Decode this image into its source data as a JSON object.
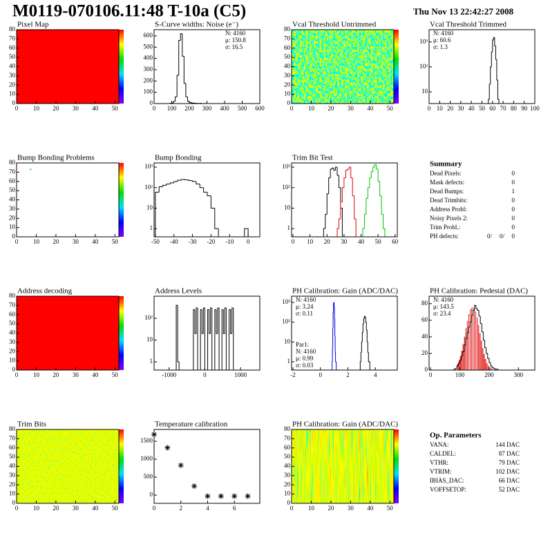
{
  "header": {
    "title": "M0119-070106.11:48 T-10a (C5)",
    "date": "Thu Nov 13 22:42:27 2008"
  },
  "chart_data": [
    {
      "type": "heatmap",
      "title": "Pixel Map",
      "fill": "#ff0000",
      "xlim": [
        0,
        52
      ],
      "xticks": [
        0,
        10,
        20,
        30,
        40,
        50
      ],
      "ylim": [
        0,
        80
      ],
      "yticks": [
        0,
        10,
        20,
        30,
        40,
        50,
        60,
        70,
        80
      ]
    },
    {
      "type": "histogram",
      "title": "S-Curve widths: Noise (e⁻)",
      "xlim": [
        0,
        600
      ],
      "xticks": [
        0,
        100,
        200,
        300,
        400,
        500,
        600
      ],
      "ylim": [
        0,
        655
      ],
      "yticks": [
        0,
        100,
        200,
        300,
        400,
        500,
        600
      ],
      "series": [
        {
          "color": "#000000",
          "bins": [
            80,
            90,
            100,
            110,
            120,
            130,
            140,
            150,
            160,
            170,
            180,
            190,
            200,
            210,
            220,
            230,
            240,
            250,
            260,
            270,
            280,
            290,
            300
          ],
          "counts": [
            0,
            2,
            5,
            20,
            60,
            250,
            560,
            620,
            420,
            180,
            60,
            20,
            10,
            6,
            4,
            3,
            2,
            1,
            2,
            0,
            1,
            0
          ]
        }
      ],
      "stats_corner": "top-right",
      "stats": [
        {
          "text": "N: 4160",
          "color": "#000000"
        },
        {
          "text": "μ: 150.8",
          "color": "#000000"
        },
        {
          "text": "σ: 16.5",
          "color": "#000000"
        }
      ]
    },
    {
      "type": "heatmap",
      "title": "Vcal Threshold Untrimmed",
      "xlim": [
        0,
        52
      ],
      "xticks": [
        0,
        10,
        20,
        30,
        40,
        50
      ],
      "ylim": [
        0,
        80
      ],
      "yticks": [
        0,
        10,
        20,
        30,
        40,
        50,
        60,
        70,
        80
      ]
    },
    {
      "type": "histogram",
      "title": "Vcal Threshold Trimmed",
      "log_y": true,
      "xlim": [
        0,
        100
      ],
      "xticks": [
        0,
        10,
        20,
        30,
        40,
        50,
        60,
        70,
        80,
        90,
        100
      ],
      "ylim": [
        3.4,
        3100
      ],
      "yticks": [
        10,
        {
          "value": 100,
          "label": "10²"
        },
        {
          "value": 1000,
          "label": "10³"
        }
      ],
      "series": [
        {
          "color": "#000000",
          "bins": [
            56,
            57,
            58,
            59,
            60,
            61,
            62,
            63,
            64,
            65,
            66
          ],
          "counts": [
            5,
            20,
            100,
            400,
            1200,
            1500,
            700,
            200,
            30,
            5
          ]
        }
      ],
      "stats_corner": "top-left",
      "stats": [
        {
          "text": "N: 4160",
          "color": "#000000"
        },
        {
          "text": "μ: 60.6",
          "color": "#000000"
        },
        {
          "text": "σ:  1.3",
          "color": "#000000"
        }
      ]
    },
    {
      "type": "heatmap",
      "title": "Bump Bonding Problems",
      "xlim": [
        0,
        52
      ],
      "xticks": [
        0,
        10,
        20,
        30,
        40,
        50
      ],
      "ylim": [
        0,
        80
      ],
      "yticks": [
        0,
        10,
        20,
        30,
        40,
        50,
        60,
        70,
        80
      ],
      "points_color": "#30d8c0",
      "points": [
        {
          "x": 7,
          "y": 73
        }
      ]
    },
    {
      "type": "histogram",
      "title": "Bump Bonding",
      "log_y": true,
      "xlim": [
        -50.7,
        6.3
      ],
      "xticks": [
        -50,
        -40,
        -30,
        -20,
        -10,
        0
      ],
      "ylim": [
        0.4,
        1600
      ],
      "yticks": [
        1,
        10,
        {
          "value": 100,
          "label": "10²"
        },
        {
          "value": 1000,
          "label": "10³"
        }
      ],
      "series": [
        {
          "color": "#000000",
          "bins": [
            -50,
            -48,
            -46,
            -44,
            -42,
            -40,
            -38,
            -36,
            -34,
            -32,
            -30,
            -28,
            -26,
            -24,
            -22,
            -20,
            -18,
            -16,
            -14,
            -12,
            -10,
            -8,
            -6,
            -4,
            -2,
            0
          ],
          "counts": [
            60,
            110,
            130,
            150,
            170,
            200,
            230,
            250,
            240,
            220,
            200,
            150,
            100,
            60,
            40,
            10,
            1,
            0,
            0,
            0,
            0,
            0,
            0,
            0,
            1
          ]
        }
      ]
    },
    {
      "type": "histogram",
      "title": "Trim Bit Test",
      "log_y": true,
      "xlim": [
        -0.8,
        61.3
      ],
      "xticks": [
        0,
        10,
        20,
        30,
        40,
        50,
        60
      ],
      "ylim": [
        0.4,
        1600
      ],
      "yticks": [
        1,
        10,
        {
          "value": 100,
          "label": "10²"
        },
        {
          "value": 1000,
          "label": "10³"
        }
      ],
      "series": [
        {
          "color": "#000000",
          "bins": [
            18,
            19,
            20,
            21,
            22,
            23,
            24,
            25,
            26,
            27,
            28,
            29
          ],
          "counts": [
            1,
            5,
            50,
            300,
            800,
            900,
            700,
            1000,
            400,
            100,
            10
          ]
        },
        {
          "color": "#e00000",
          "bins": [
            26,
            27,
            28,
            29,
            30,
            31,
            32,
            33,
            34,
            35,
            36,
            37
          ],
          "counts": [
            1,
            3,
            20,
            100,
            300,
            700,
            800,
            1000,
            300,
            40,
            3
          ]
        },
        {
          "color": "#00c000",
          "bins": [
            41,
            42,
            43,
            44,
            45,
            46,
            47,
            48,
            49,
            50,
            51,
            52,
            53,
            54
          ],
          "counts": [
            1,
            5,
            30,
            100,
            300,
            600,
            1000,
            1300,
            800,
            200,
            40,
            5,
            1
          ]
        }
      ]
    },
    {
      "type": "heatmap",
      "title": "Address decoding",
      "fill": "#ff0000",
      "xlim": [
        0,
        52
      ],
      "xticks": [
        0,
        10,
        20,
        30,
        40,
        50
      ],
      "ylim": [
        0,
        80
      ],
      "yticks": [
        0,
        10,
        20,
        30,
        40,
        50,
        60,
        70,
        80
      ]
    },
    {
      "type": "histogram",
      "title": "Address Levels",
      "log_y": true,
      "xlim": [
        -1420,
        1540
      ],
      "xticks": [
        -1000,
        0,
        1000
      ],
      "ylim": [
        0.42,
        1040
      ],
      "yticks": [
        1,
        10,
        {
          "value": 100,
          "label": "10²"
        }
      ],
      "series": [
        {
          "color": "#000000",
          "bins": [
            -800,
            -760,
            -720,
            -680,
            -640,
            -600,
            -560,
            -520,
            -480,
            -440,
            -400,
            -360,
            -320,
            -280,
            -240,
            -200,
            -160,
            -120,
            -80,
            -40,
            0,
            40,
            80,
            120,
            160,
            200,
            240,
            280,
            320,
            360,
            400,
            440,
            480,
            520,
            560,
            600,
            640,
            680,
            720,
            760,
            800,
            840
          ],
          "counts": [
            400,
            1,
            0,
            0,
            0,
            0,
            0,
            0,
            0,
            0,
            0,
            0,
            250,
            20,
            300,
            0,
            0,
            250,
            20,
            300,
            0,
            0,
            250,
            20,
            300,
            0,
            0,
            250,
            20,
            300,
            0,
            0,
            250,
            20,
            300,
            0,
            0,
            250,
            20,
            300,
            0
          ]
        }
      ]
    },
    {
      "type": "histogram",
      "title": "PH Calibration: Gain (ADC/DAC)",
      "log_y": true,
      "xlim": [
        -2.1,
        5.6
      ],
      "xticks": [
        -2,
        0,
        2,
        4
      ],
      "ylim": [
        0.38,
        2060
      ],
      "yticks": [
        1,
        10,
        {
          "value": 100,
          "label": "10²"
        },
        {
          "value": 1000,
          "label": "10³"
        }
      ],
      "series": [
        {
          "color": "#000000",
          "bins": [
            2.9,
            2.95,
            3,
            3.05,
            3.1,
            3.15,
            3.2,
            3.25,
            3.3,
            3.35,
            3.4,
            3.45,
            3.5,
            3.55,
            3.6
          ],
          "counts": [
            1,
            3,
            10,
            30,
            80,
            150,
            200,
            180,
            100,
            40,
            10,
            3,
            1,
            1
          ]
        },
        {
          "color": "#0000e0",
          "bins": [
            0.85,
            0.875,
            0.9,
            0.925,
            0.95,
            0.975,
            1,
            1.025,
            1.05,
            1.075,
            1.1,
            1.125,
            1.15
          ],
          "counts": [
            1,
            5,
            50,
            300,
            900,
            1000,
            600,
            150,
            20,
            3,
            1,
            1
          ]
        }
      ],
      "stats_corner": "top-left",
      "stats": [
        {
          "text": "N: 4160",
          "color": "#000000"
        },
        {
          "text": "μ: 3.24",
          "color": "#000000"
        },
        {
          "text": "σ: 0.11",
          "color": "#000000"
        }
      ],
      "fit_stats_corner": "bottom-left",
      "fit_stats": [
        {
          "text": "Par1:",
          "color": "#0000e0"
        },
        {
          "text": "N: 4160",
          "color": "#0000e0"
        },
        {
          "text": "μ: 0.99",
          "color": "#0000e0"
        },
        {
          "text": "σ: 0.03",
          "color": "#0000e0"
        }
      ]
    },
    {
      "type": "histogram",
      "title": "PH Calibration: Pedestal (DAC)",
      "xlim": [
        -5,
        356
      ],
      "xticks": [
        0,
        100,
        200,
        300
      ],
      "ylim": [
        0,
        89
      ],
      "yticks": [
        0,
        20,
        40,
        60,
        80
      ],
      "series": [
        {
          "color": "#e00000",
          "style": "hatched",
          "bins": [
            90,
            95,
            100,
            105,
            110,
            115,
            120,
            125,
            130,
            135,
            140,
            145,
            150,
            155,
            160,
            165,
            170,
            175,
            180,
            185,
            190,
            195,
            200,
            205,
            210
          ],
          "counts": [
            7,
            11,
            16,
            23,
            31,
            40,
            50,
            59,
            67,
            73,
            75,
            74,
            70,
            63,
            54,
            44,
            35,
            26,
            19,
            13,
            8,
            5,
            3,
            2
          ]
        },
        {
          "color": "#000000",
          "bins": [
            80,
            85,
            90,
            95,
            100,
            105,
            110,
            115,
            120,
            125,
            130,
            135,
            140,
            145,
            150,
            155,
            160,
            165,
            170,
            175,
            180,
            185,
            190,
            195,
            200,
            205,
            210,
            215,
            220,
            225,
            230
          ],
          "counts": [
            1,
            2,
            5,
            8,
            12,
            17,
            22,
            30,
            38,
            45,
            52,
            58,
            66,
            72,
            78,
            74,
            72,
            65,
            56,
            46,
            36,
            27,
            20,
            14,
            9,
            5,
            3,
            2,
            1,
            1
          ]
        }
      ],
      "stats_corner": "top-left",
      "stats": [
        {
          "text": "N: 4160",
          "color": "#000000"
        },
        {
          "text": "μ: 143.5",
          "color": "#e00000"
        },
        {
          "text": "σ: 23.4",
          "color": "#e00000"
        }
      ]
    },
    {
      "type": "heatmap",
      "title": "Trim Bits",
      "xlim": [
        0,
        52
      ],
      "xticks": [
        0,
        10,
        20,
        30,
        40,
        50
      ],
      "ylim": [
        0,
        80
      ],
      "yticks": [
        0,
        10,
        20,
        30,
        40,
        50,
        60,
        70,
        80
      ]
    },
    {
      "type": "scatter",
      "title": "Temperature calibration",
      "xlim": [
        0,
        7.9
      ],
      "xticks": [
        0,
        2,
        4,
        6
      ],
      "ylim": [
        -230,
        1830
      ],
      "yticks": [
        0,
        500,
        1000,
        1500
      ],
      "x": [
        0,
        1,
        2,
        3,
        4,
        5,
        6,
        7
      ],
      "values": [
        1690,
        1320,
        830,
        250,
        -30,
        -30,
        -30,
        -30
      ],
      "color": "#000000"
    },
    {
      "type": "heatmap",
      "title": "PH Calibration: Gain (ADC/DAC)",
      "xlim": [
        0,
        52
      ],
      "xticks": [
        0,
        10,
        20,
        30,
        40,
        50
      ],
      "ylim": [
        0,
        80
      ],
      "yticks": [
        0,
        10,
        20,
        30,
        40,
        50,
        60,
        70,
        80
      ]
    }
  ],
  "summary": {
    "title": "Summary",
    "rows": [
      {
        "label": "Dead Pixels:",
        "value": 0
      },
      {
        "label": "Mask defects:",
        "value": 0
      },
      {
        "label": "Dead Bumps:",
        "value": 1
      },
      {
        "label": "Dead Trimbits:",
        "value": 0
      },
      {
        "label": "Address Probl:",
        "value": 0
      },
      {
        "label": "Noisy Pixels 2:",
        "value": 0
      },
      {
        "label": "Trim Probl.:",
        "value": 0
      }
    ],
    "ph_defects": {
      "label": "PH defects:",
      "values": [
        0,
        0,
        0
      ],
      "value_labels": [
        "0/",
        "0/",
        "0"
      ],
      "colors": [
        "#000000",
        "#e00000",
        "#0000e0"
      ]
    }
  },
  "op_parameters": {
    "title": "Op. Parameters",
    "rows": [
      {
        "label": "VANA:",
        "value": "144 DAC"
      },
      {
        "label": "CALDEL:",
        "value": "87 DAC"
      },
      {
        "label": "VTHR:",
        "value": "79 DAC"
      },
      {
        "label": "VTRIM:",
        "value": "102 DAC"
      },
      {
        "label": "IBIAS_DAC:",
        "value": "66 DAC"
      },
      {
        "label": "VOFFSETOP:",
        "value": "52 DAC"
      }
    ]
  }
}
